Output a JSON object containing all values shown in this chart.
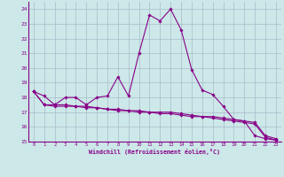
{
  "xlabel": "Windchill (Refroidissement éolien,°C)",
  "x": [
    0,
    1,
    2,
    3,
    4,
    5,
    6,
    7,
    8,
    9,
    10,
    11,
    12,
    13,
    14,
    15,
    16,
    17,
    18,
    19,
    20,
    21,
    22,
    23
  ],
  "line1": [
    18.4,
    18.1,
    17.5,
    18.0,
    18.0,
    17.5,
    18.0,
    18.1,
    19.4,
    18.1,
    21.0,
    23.6,
    23.2,
    24.0,
    22.6,
    19.9,
    18.5,
    18.2,
    17.4,
    16.5,
    16.4,
    15.4,
    15.2,
    15.1
  ],
  "line2": [
    18.4,
    17.5,
    17.5,
    17.5,
    17.4,
    17.4,
    17.3,
    17.2,
    17.2,
    17.1,
    17.1,
    17.0,
    17.0,
    17.0,
    16.9,
    16.8,
    16.7,
    16.7,
    16.6,
    16.5,
    16.4,
    16.3,
    15.4,
    15.2
  ],
  "line3": [
    18.4,
    17.5,
    17.4,
    17.4,
    17.4,
    17.3,
    17.3,
    17.2,
    17.1,
    17.1,
    17.0,
    17.0,
    16.9,
    16.9,
    16.8,
    16.7,
    16.7,
    16.6,
    16.5,
    16.4,
    16.3,
    16.2,
    15.3,
    15.1
  ],
  "line_color": "#880088",
  "bg_color": "#cce8e8",
  "grid_color": "#aabbcc",
  "ylim": [
    15,
    24.5
  ],
  "yticks": [
    15,
    16,
    17,
    18,
    19,
    20,
    21,
    22,
    23,
    24
  ],
  "xticks": [
    0,
    1,
    2,
    3,
    4,
    5,
    6,
    7,
    8,
    9,
    10,
    11,
    12,
    13,
    14,
    15,
    16,
    17,
    18,
    19,
    20,
    21,
    22,
    23
  ]
}
